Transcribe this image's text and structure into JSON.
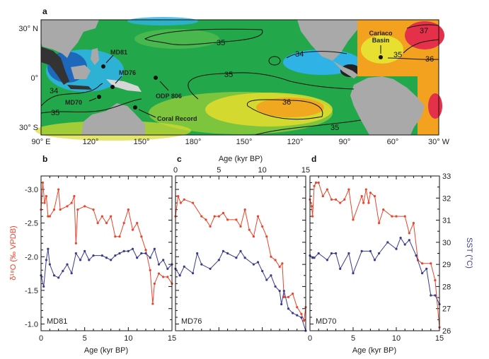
{
  "map": {
    "panel_label": "a",
    "lat_labels": [
      "30° N",
      "0°",
      "30° S"
    ],
    "lon_labels": [
      "90° E",
      "120°",
      "150°",
      "180°",
      "150°",
      "120°",
      "90°",
      "60°",
      "30° W"
    ],
    "sites": {
      "md81": "MD81",
      "md76": "MD76",
      "md70": "MD70",
      "odp806": "ODP 806",
      "coral": "Coral Record",
      "cariaco_1": "Cariaco",
      "cariaco_2": "Basin"
    },
    "contours": [
      "35",
      "34",
      "35",
      "34",
      "35",
      "36",
      "35",
      "37",
      "35",
      "36"
    ],
    "colors": {
      "ocean": "#22a84a",
      "low": "#2fb3e6",
      "high": "#f2a21e",
      "max": "#e5304a",
      "land": "#a9a9a9"
    }
  },
  "chart_data": [
    {
      "type": "line",
      "panel": "b",
      "core": "MD81",
      "xlabel": "Age (kyr BP)",
      "ylabel": "δ¹⁸O (‰ VPDB)",
      "y2label": "SST (°C)",
      "xlim": [
        0,
        15
      ],
      "ylim": [
        -0.9,
        -3.2
      ],
      "y2lim": [
        26,
        33
      ],
      "x_ticks": [
        "0",
        "5",
        "10",
        "15"
      ],
      "y_ticks": [
        "-3.0",
        "-2.5",
        "-2.0",
        "-1.5",
        "-1.0"
      ],
      "series": [
        {
          "name": "δ18O",
          "color": "#e8452c",
          "axis": "left",
          "points": [
            [
              0,
              -2.7
            ],
            [
              0.2,
              -3.1
            ],
            [
              0.4,
              -2.8
            ],
            [
              0.6,
              -2.9
            ],
            [
              0.8,
              -2.6
            ],
            [
              1,
              -2.6
            ],
            [
              1.5,
              -2.7
            ],
            [
              2,
              -3.0
            ],
            [
              2.2,
              -2.7
            ],
            [
              3,
              -2.75
            ],
            [
              3.5,
              -2.8
            ],
            [
              3.8,
              -2.9
            ],
            [
              4,
              -2.2
            ],
            [
              4.2,
              -2.7
            ],
            [
              5,
              -2.75
            ],
            [
              6,
              -2.7
            ],
            [
              6.5,
              -2.5
            ],
            [
              7,
              -2.6
            ],
            [
              7.5,
              -2.5
            ],
            [
              8,
              -2.6
            ],
            [
              8.5,
              -2.3
            ],
            [
              9,
              -2.3
            ],
            [
              9.5,
              -2.5
            ],
            [
              10,
              -2.7
            ],
            [
              10.5,
              -2.4
            ],
            [
              11,
              -2.5
            ],
            [
              11.5,
              -2.3
            ],
            [
              12,
              -2.1
            ],
            [
              12.5,
              -1.8
            ],
            [
              12.8,
              -1.3
            ],
            [
              13,
              -1.6
            ],
            [
              13.5,
              -1.75
            ],
            [
              14,
              -1.7
            ],
            [
              14.5,
              -1.7
            ],
            [
              15,
              -1.6
            ]
          ]
        },
        {
          "name": "SST",
          "color": "#3b3b8e",
          "axis": "right",
          "points": [
            [
              0,
              28.5
            ],
            [
              0.3,
              28
            ],
            [
              0.6,
              29.2
            ],
            [
              0.8,
              29.7
            ],
            [
              1,
              29
            ],
            [
              1.5,
              28.5
            ],
            [
              2,
              28.4
            ],
            [
              2.5,
              28.7
            ],
            [
              3,
              29
            ],
            [
              3.5,
              28.6
            ],
            [
              4,
              29.5
            ],
            [
              4.5,
              29.2
            ],
            [
              5,
              29.6
            ],
            [
              5.5,
              29.2
            ],
            [
              6,
              29.4
            ],
            [
              7,
              29.4
            ],
            [
              7.5,
              29.3
            ],
            [
              8,
              29.2
            ],
            [
              8.5,
              29.4
            ],
            [
              9,
              29.5
            ],
            [
              9.5,
              29.6
            ],
            [
              10,
              29.6
            ],
            [
              10.5,
              29.7
            ],
            [
              11,
              29.3
            ],
            [
              11.5,
              29.5
            ],
            [
              12,
              29.5
            ],
            [
              12.5,
              29.3
            ],
            [
              13,
              29.7
            ],
            [
              13.5,
              29
            ],
            [
              14,
              29.2
            ],
            [
              14.5,
              28.8
            ],
            [
              15,
              29
            ]
          ]
        }
      ]
    },
    {
      "type": "line",
      "panel": "c",
      "core": "MD76",
      "xlabel": "Age (kyr BP)",
      "xlim": [
        0,
        15
      ],
      "ylim": [
        -0.9,
        -3.2
      ],
      "y2lim": [
        26,
        33
      ],
      "x_ticks": [
        "0",
        "5",
        "10",
        "15"
      ],
      "series": [
        {
          "name": "δ18O",
          "color": "#e8452c",
          "axis": "left",
          "points": [
            [
              0,
              -2.6
            ],
            [
              0.3,
              -2.9
            ],
            [
              0.6,
              -2.8
            ],
            [
              1,
              -2.85
            ],
            [
              2,
              -2.8
            ],
            [
              3,
              -2.6
            ],
            [
              3.5,
              -2.55
            ],
            [
              4,
              -2.45
            ],
            [
              4.5,
              -2.6
            ],
            [
              5,
              -2.6
            ],
            [
              5.5,
              -2.65
            ],
            [
              6,
              -2.55
            ],
            [
              7,
              -2.55
            ],
            [
              7.5,
              -2.45
            ],
            [
              8,
              -2.7
            ],
            [
              8.5,
              -2.4
            ],
            [
              9,
              -2.3
            ],
            [
              9.5,
              -2.6
            ],
            [
              10,
              -2.45
            ],
            [
              10.5,
              -2.3
            ],
            [
              11,
              -2.0
            ],
            [
              11.5,
              -1.95
            ],
            [
              12,
              -1.85
            ],
            [
              12.3,
              -1.9
            ],
            [
              12.5,
              -1.4
            ],
            [
              13,
              -1.4
            ],
            [
              13.5,
              -1.45
            ],
            [
              14,
              -1.25
            ],
            [
              14.5,
              -1.15
            ],
            [
              14.8,
              -1.05
            ],
            [
              15,
              -1.25
            ]
          ]
        },
        {
          "name": "SST",
          "color": "#3b3b8e",
          "axis": "right",
          "points": [
            [
              0,
              28.8
            ],
            [
              0.5,
              28.5
            ],
            [
              1,
              28.9
            ],
            [
              2,
              28.6
            ],
            [
              2.5,
              29.5
            ],
            [
              3,
              29
            ],
            [
              4,
              28.8
            ],
            [
              5,
              29.2
            ],
            [
              5.5,
              29.6
            ],
            [
              6,
              29.5
            ],
            [
              7,
              29.3
            ],
            [
              7.5,
              29.6
            ],
            [
              8,
              29.3
            ],
            [
              9,
              29
            ],
            [
              9.5,
              29.1
            ],
            [
              10,
              28.7
            ],
            [
              10.5,
              28.3
            ],
            [
              11,
              28.5
            ],
            [
              11.5,
              28.0
            ],
            [
              12,
              27.8
            ],
            [
              12.2,
              27.2
            ],
            [
              12.5,
              27.8
            ],
            [
              13,
              27.0
            ],
            [
              13.5,
              26.8
            ],
            [
              14,
              26.7
            ],
            [
              14.5,
              26.6
            ],
            [
              15,
              26.0
            ]
          ]
        }
      ]
    },
    {
      "type": "line",
      "panel": "d",
      "core": "MD70",
      "xlabel": "Age (kyr BP)",
      "xlim": [
        0,
        15
      ],
      "ylim": [
        -0.9,
        -3.2
      ],
      "y2lim": [
        26,
        33
      ],
      "x_ticks": [
        "0",
        "5",
        "10",
        "15"
      ],
      "y2_ticks": [
        "26",
        "27",
        "28",
        "29",
        "30",
        "31",
        "32",
        "33"
      ],
      "series": [
        {
          "name": "δ18O",
          "color": "#e8452c",
          "axis": "left",
          "points": [
            [
              0,
              -2.85
            ],
            [
              0.2,
              -2.75
            ],
            [
              0.3,
              -2.6
            ],
            [
              0.5,
              -3.05
            ],
            [
              0.7,
              -3.1
            ],
            [
              1,
              -3.1
            ],
            [
              1.5,
              -2.9
            ],
            [
              2,
              -3.0
            ],
            [
              2.5,
              -2.85
            ],
            [
              3,
              -2.85
            ],
            [
              3.5,
              -2.8
            ],
            [
              4,
              -2.85
            ],
            [
              4.5,
              -3.0
            ],
            [
              5,
              -2.55
            ],
            [
              6,
              -2.9
            ],
            [
              6.2,
              -2.8
            ],
            [
              6.5,
              -3.0
            ],
            [
              6.8,
              -2.8
            ],
            [
              7,
              -2.95
            ],
            [
              7.5,
              -2.9
            ],
            [
              8,
              -2.5
            ],
            [
              8.5,
              -2.7
            ],
            [
              9.5,
              -2.6
            ],
            [
              10,
              -2.6
            ],
            [
              11,
              -2.6
            ],
            [
              11.5,
              -2.35
            ],
            [
              12,
              -2.5
            ],
            [
              12.5,
              -1.95
            ],
            [
              13,
              -1.9
            ],
            [
              14,
              -1.9
            ],
            [
              14.5,
              -1.65
            ],
            [
              15,
              -0.95
            ]
          ]
        },
        {
          "name": "SST",
          "color": "#3b3b8e",
          "axis": "right",
          "points": [
            [
              0,
              29.4
            ],
            [
              0.3,
              29.3
            ],
            [
              0.5,
              29.3
            ],
            [
              1,
              29.5
            ],
            [
              2,
              29.2
            ],
            [
              2.5,
              29.5
            ],
            [
              3,
              29.5
            ],
            [
              3.5,
              28.8
            ],
            [
              4.5,
              29.5
            ],
            [
              5,
              28.6
            ],
            [
              6,
              29.6
            ],
            [
              7,
              29.6
            ],
            [
              7.5,
              29.2
            ],
            [
              8,
              29.5
            ],
            [
              9,
              30
            ],
            [
              10,
              29.7
            ],
            [
              10.5,
              30.2
            ],
            [
              11,
              29.9
            ],
            [
              11.5,
              30.1
            ],
            [
              12.3,
              29.4
            ],
            [
              13,
              28.6
            ],
            [
              13.5,
              28.8
            ],
            [
              14,
              27.6
            ],
            [
              14.5,
              27.6
            ],
            [
              15,
              27.2
            ]
          ]
        }
      ]
    }
  ]
}
